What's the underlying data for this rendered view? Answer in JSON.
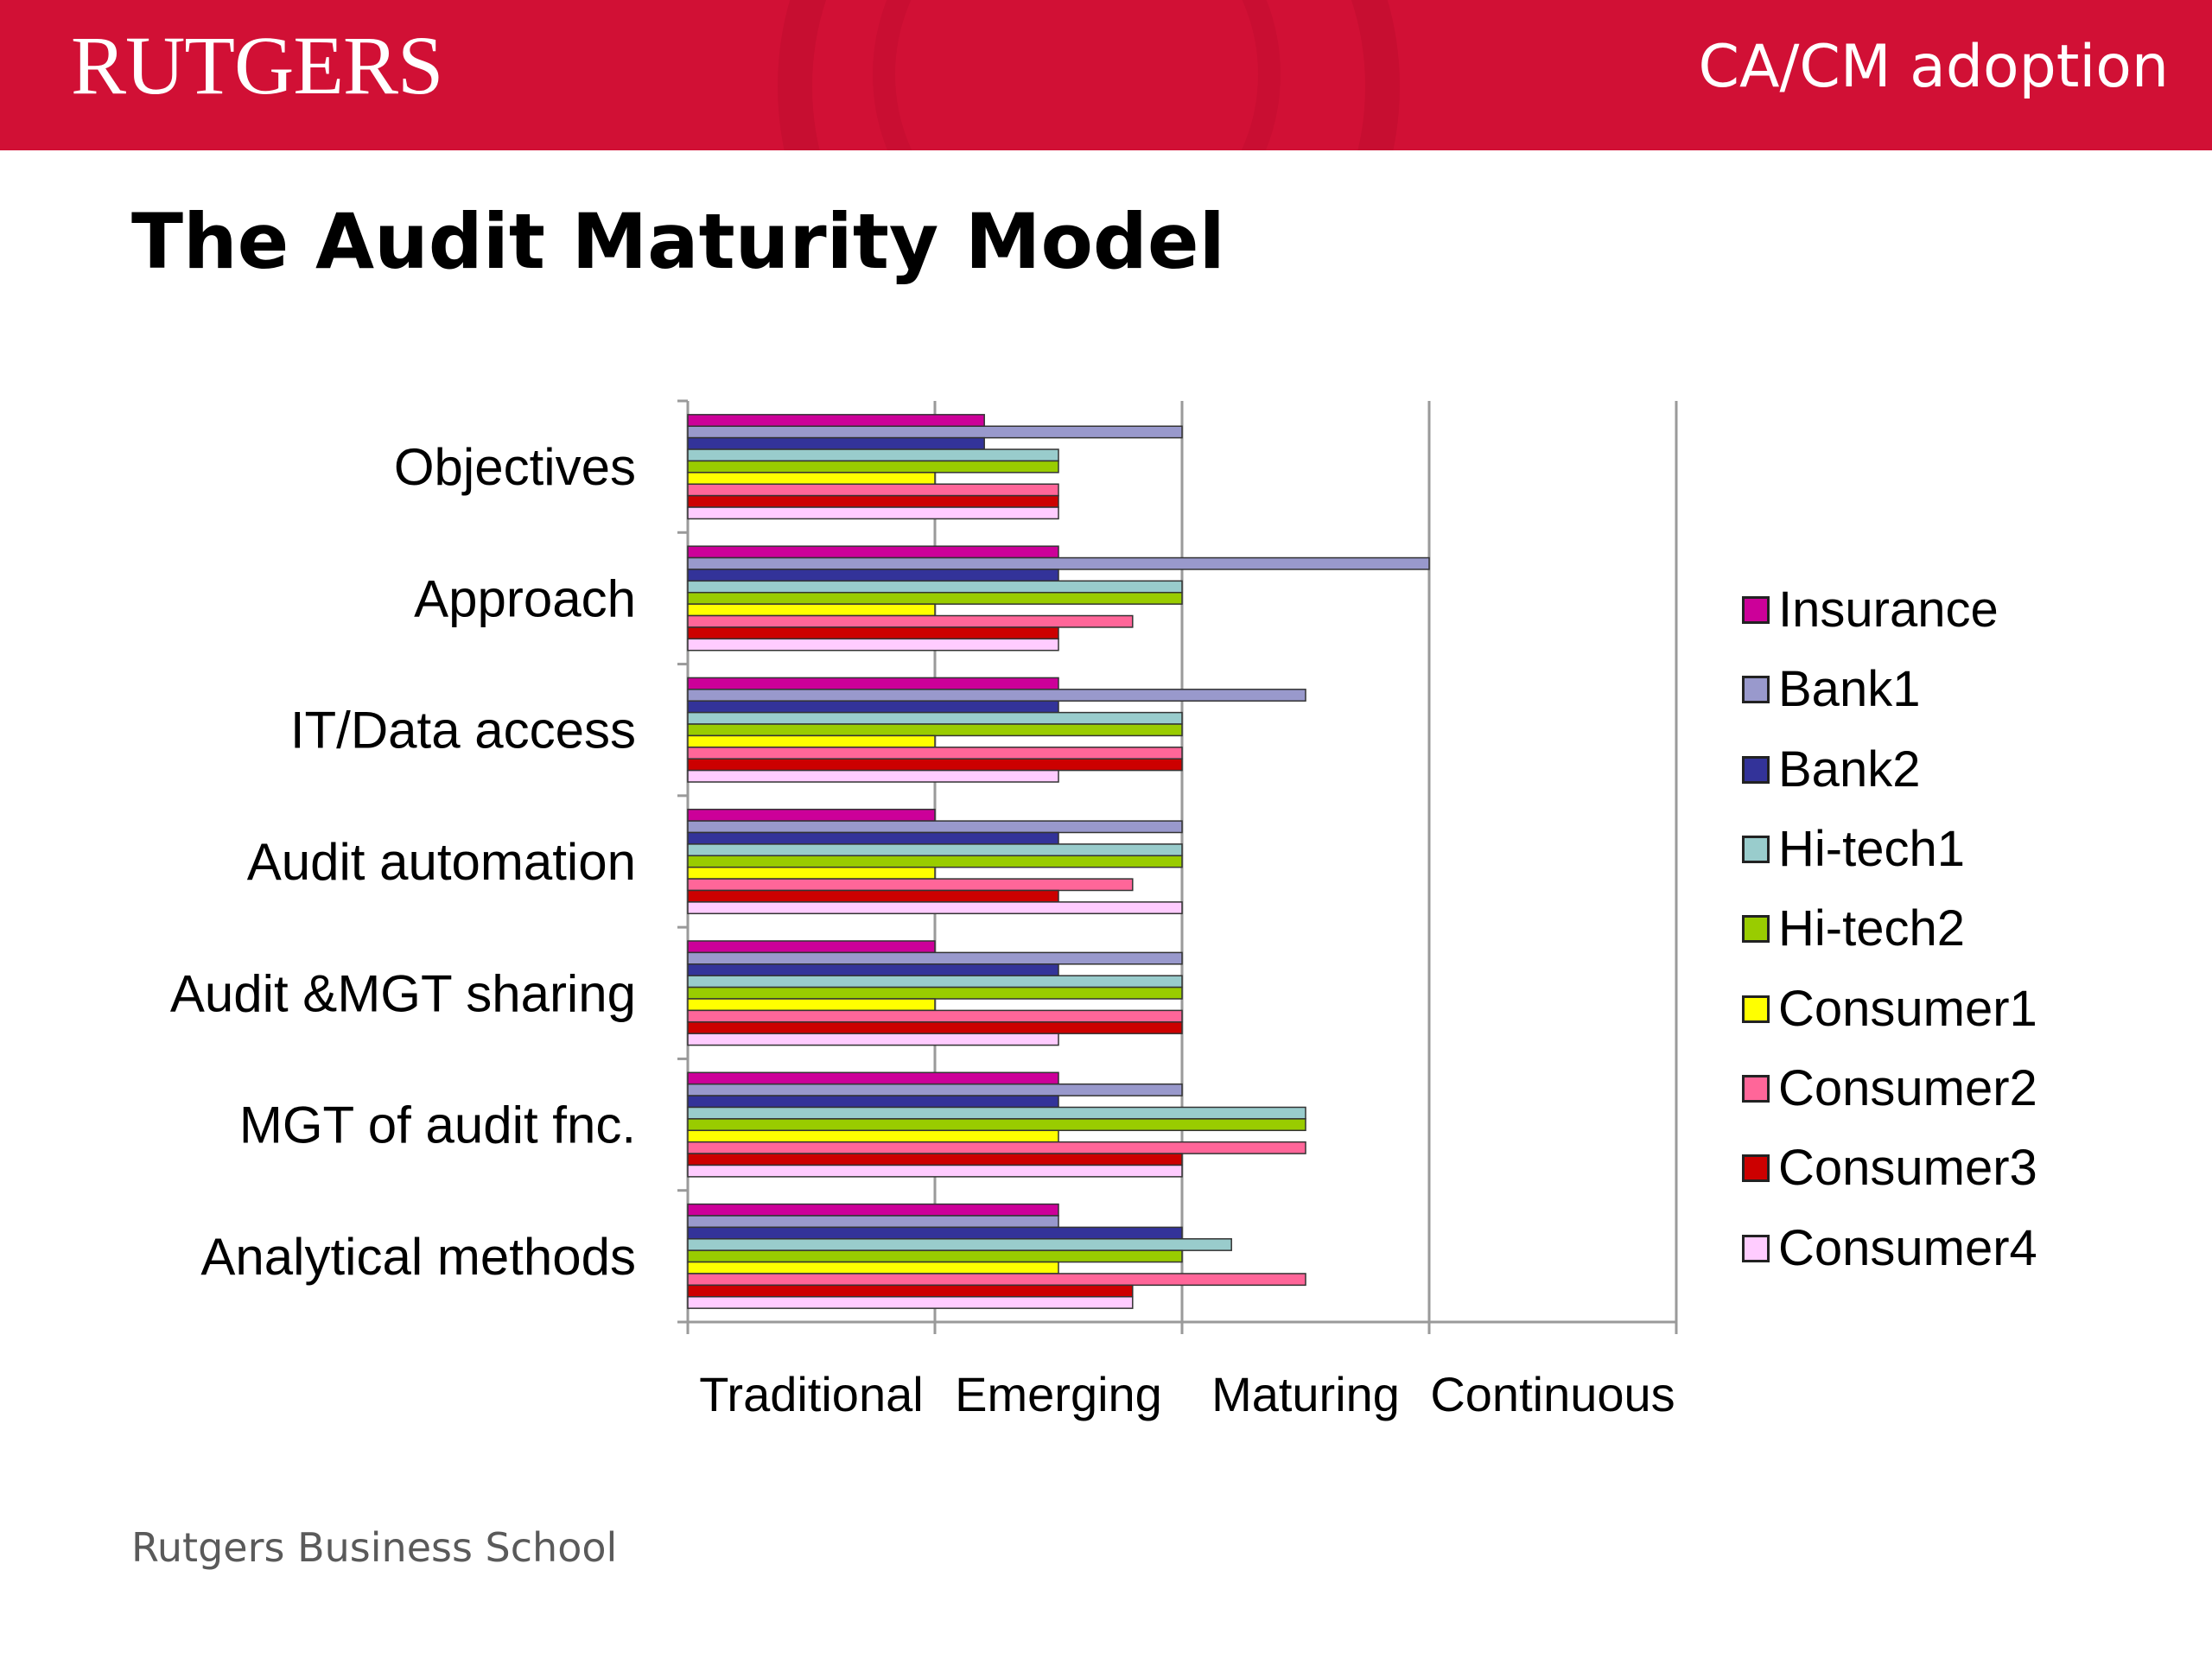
{
  "header": {
    "logo_text": "RUTGERS",
    "course_title": "CA/CM adoption"
  },
  "slide": {
    "title": "The Audit Maturity Model",
    "footer": "Rutgers Business School"
  },
  "chart_data": {
    "type": "bar",
    "orientation": "horizontal",
    "title": "",
    "xlabel": "",
    "ylabel": "",
    "categories": [
      "Objectives",
      "Approach",
      "IT/Data access",
      "Audit automation",
      "Audit &MGT sharing",
      "MGT of audit fnc.",
      "Analytical methods"
    ],
    "x_tick_labels": [
      "Traditional",
      "Emerging",
      "Maturing",
      "Continuous"
    ],
    "xlim": [
      0,
      4
    ],
    "grid": true,
    "legend_position": "right",
    "series": [
      {
        "name": "Insurance",
        "color": "#cc0099",
        "values": [
          1.2,
          1.5,
          1.5,
          1.0,
          1.0,
          1.5,
          1.5
        ]
      },
      {
        "name": "Bank1",
        "color": "#9999cc",
        "values": [
          2.0,
          3.0,
          2.5,
          2.0,
          2.0,
          2.0,
          1.5
        ]
      },
      {
        "name": "Bank2",
        "color": "#333399",
        "values": [
          1.2,
          1.5,
          1.5,
          1.5,
          1.5,
          1.5,
          2.0
        ]
      },
      {
        "name": "Hi-tech1",
        "color": "#99cccc",
        "values": [
          1.5,
          2.0,
          2.0,
          2.0,
          2.0,
          2.5,
          2.2
        ]
      },
      {
        "name": "Hi-tech2",
        "color": "#99cc00",
        "values": [
          1.5,
          2.0,
          2.0,
          2.0,
          2.0,
          2.5,
          2.0
        ]
      },
      {
        "name": "Consumer1",
        "color": "#ffff00",
        "values": [
          1.0,
          1.0,
          1.0,
          1.0,
          1.0,
          1.5,
          1.5
        ]
      },
      {
        "name": "Consumer2",
        "color": "#ff6699",
        "values": [
          1.5,
          1.8,
          2.0,
          1.8,
          2.0,
          2.5,
          2.5
        ]
      },
      {
        "name": "Consumer3",
        "color": "#cc0000",
        "values": [
          1.5,
          1.5,
          2.0,
          1.5,
          2.0,
          2.0,
          1.8
        ]
      },
      {
        "name": "Consumer4",
        "color": "#ffccff",
        "values": [
          1.5,
          1.5,
          1.5,
          2.0,
          1.5,
          2.0,
          1.8
        ]
      }
    ]
  }
}
